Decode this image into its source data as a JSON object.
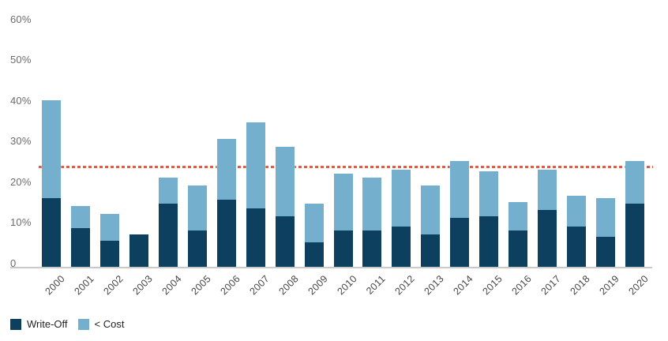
{
  "chart_data": {
    "type": "bar",
    "stacked": true,
    "title": "",
    "xlabel": "",
    "ylabel": "",
    "categories": [
      "2000",
      "2001",
      "2002",
      "2003",
      "2004",
      "2005",
      "2006",
      "2007",
      "2008",
      "2009",
      "2010",
      "2011",
      "2012",
      "2013",
      "2014",
      "2015",
      "2016",
      "2017",
      "2018",
      "2019",
      "2020"
    ],
    "series": [
      {
        "name": "Write-Off",
        "color": "#0d3f5f",
        "values": [
          16,
          8.5,
          5.5,
          7,
          14.5,
          8,
          15.5,
          13.5,
          11.5,
          5,
          8,
          8,
          9,
          7,
          11,
          11.5,
          8,
          13,
          9,
          6.5,
          14.5
        ]
      },
      {
        "name": "< Cost",
        "color": "#74b0ce",
        "values": [
          24,
          5.5,
          6.5,
          0,
          6.5,
          11,
          15,
          21,
          17,
          9.5,
          14,
          13,
          14,
          12,
          14,
          11,
          7,
          10,
          7.5,
          9.5,
          10.5
        ]
      }
    ],
    "y_ticks": [
      {
        "label": "60%",
        "value": 60
      },
      {
        "label": "50%",
        "value": 50
      },
      {
        "label": "40%",
        "value": 40
      },
      {
        "label": "30%",
        "value": 30
      },
      {
        "label": "20%",
        "value": 20
      },
      {
        "label": "10%",
        "value": 10
      },
      {
        "label": "0",
        "value": 0
      }
    ],
    "ylim": [
      0,
      60
    ],
    "grid": false,
    "reference_line": {
      "value": 23.5,
      "color": "#e55a40",
      "style": "dashed"
    },
    "legend_position": "bottom-left"
  },
  "colors": {
    "write_off": "#0d3f5f",
    "less_than_cost": "#74b0ce",
    "reference_line": "#e55a40",
    "axis_line": "#c9c9c9",
    "y_tick_text": "#6b6b6b",
    "x_tick_text": "#454545",
    "background": "#ffffff"
  }
}
